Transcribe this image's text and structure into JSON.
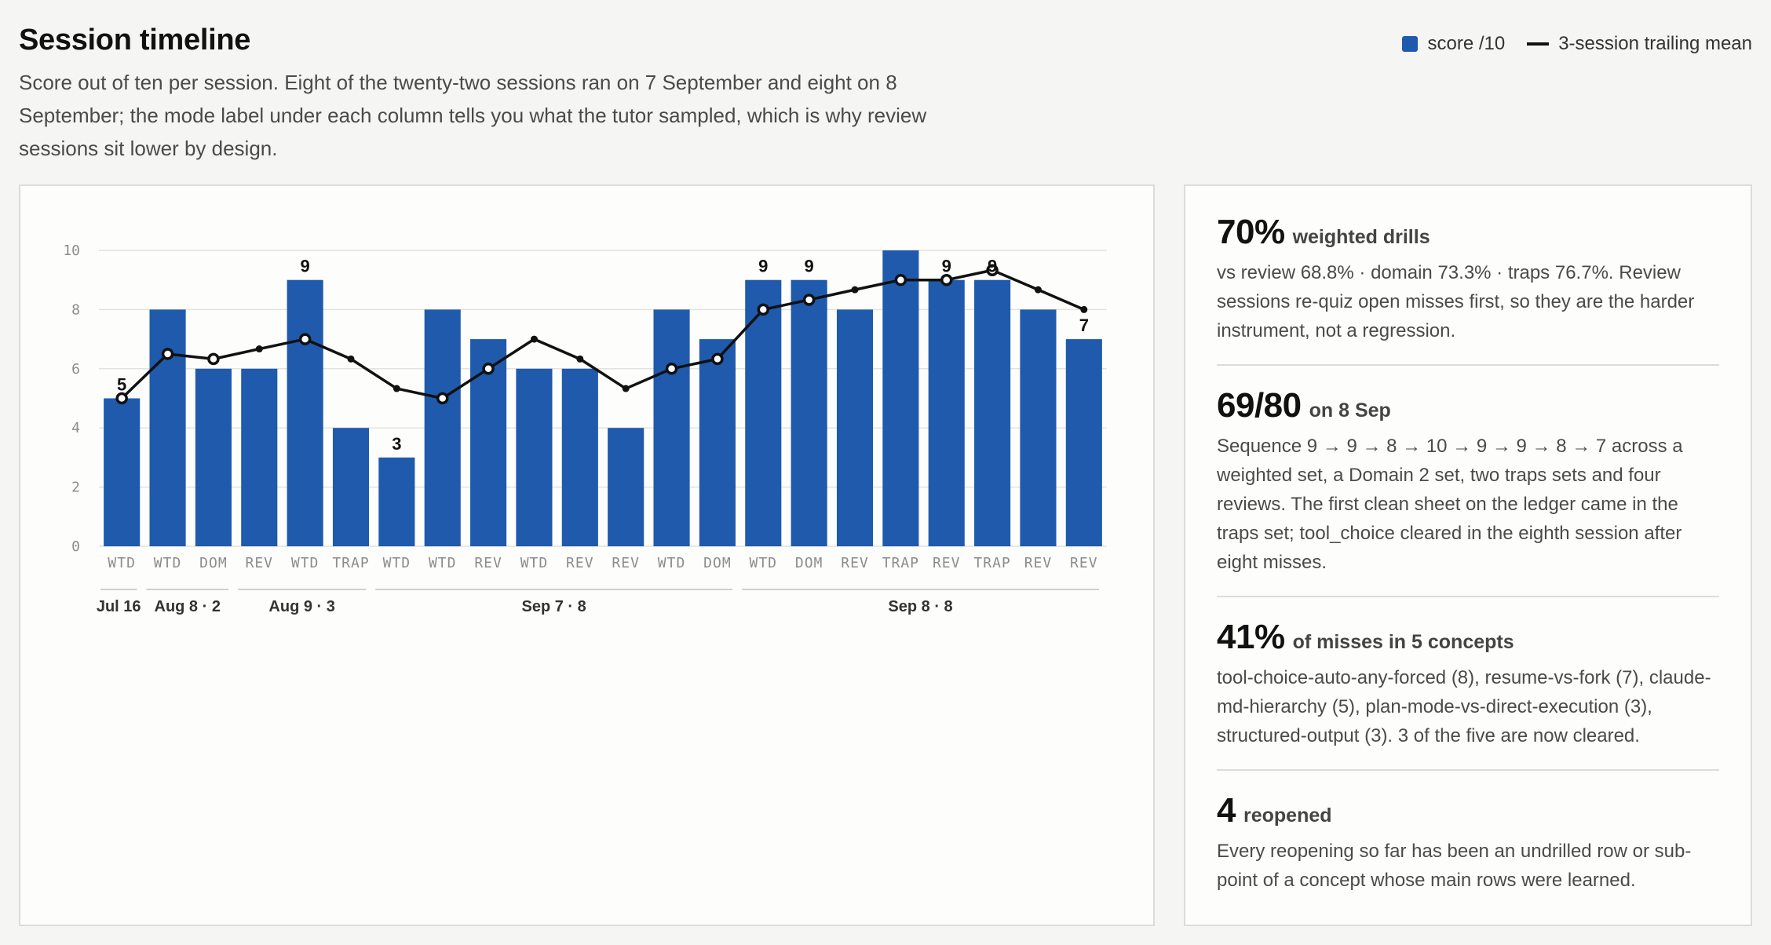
{
  "header": {
    "title": "Session timeline",
    "subtitle": "Score out of ten per session. Eight of the twenty-two sessions ran on 7 September and eight on 8 September; the mode label under each column tells you what the tutor sampled, which is why review sessions sit lower by design."
  },
  "legend": {
    "bar_label": "score /10",
    "line_label": "3-session trailing mean"
  },
  "colors": {
    "bar": "#1f5aad",
    "line": "#111111",
    "grid": "#e2e2de"
  },
  "chart_data": {
    "type": "bar",
    "title": "Session timeline",
    "ylim": [
      0,
      10
    ],
    "yticks": [
      0,
      2,
      4,
      6,
      8,
      10
    ],
    "grid": true,
    "legend_position": "top-right",
    "categories": [
      "WTD",
      "WTD",
      "DOM",
      "REV",
      "WTD",
      "TRAP",
      "WTD",
      "WTD",
      "REV",
      "WTD",
      "REV",
      "REV",
      "WTD",
      "DOM",
      "WTD",
      "DOM",
      "REV",
      "TRAP",
      "REV",
      "TRAP",
      "REV",
      "REV"
    ],
    "series": [
      {
        "name": "score /10",
        "type": "bar",
        "values": [
          5,
          8,
          6,
          6,
          9,
          4,
          3,
          8,
          7,
          6,
          6,
          4,
          8,
          7,
          9,
          9,
          8,
          10,
          9,
          9,
          8,
          7
        ]
      },
      {
        "name": "3-session trailing mean",
        "type": "line",
        "values": [
          5,
          6.5,
          6.33,
          6.67,
          7,
          6.33,
          5.33,
          5,
          6,
          7,
          6.33,
          5.33,
          6,
          6.33,
          8,
          8.33,
          8.67,
          9,
          9,
          9.33,
          8.67,
          8
        ]
      }
    ],
    "data_labels": [
      {
        "index": 0,
        "text": "5"
      },
      {
        "index": 4,
        "text": "9"
      },
      {
        "index": 6,
        "text": "3"
      },
      {
        "index": 14,
        "text": "9"
      },
      {
        "index": 15,
        "text": "9"
      },
      {
        "index": 18,
        "text": "9"
      },
      {
        "index": 19,
        "text": "9"
      },
      {
        "index": 21,
        "text": "7"
      }
    ],
    "date_groups": [
      {
        "label": "Jul 16",
        "start": 0,
        "end": 0
      },
      {
        "label": "Aug 8 · 2",
        "start": 1,
        "end": 2
      },
      {
        "label": "Aug 9 · 3",
        "start": 3,
        "end": 5
      },
      {
        "label": "Sep 7 · 8",
        "start": 6,
        "end": 13
      },
      {
        "label": "Sep 8 · 8",
        "start": 14,
        "end": 21
      }
    ]
  },
  "stats": [
    {
      "value": "70%",
      "caption": "weighted drills",
      "body": "vs review 68.8% · domain 73.3% · traps 76.7%. Review sessions re-quiz open misses first, so they are the harder instrument, not a regression."
    },
    {
      "value": "69/80",
      "caption": "on 8 Sep",
      "body": "Sequence 9 → 9 → 8 → 10 → 9 → 9 → 8 → 7 across a weighted set, a Domain 2 set, two traps sets and four reviews. The first clean sheet on the ledger came in the traps set; tool_choice cleared in the eighth session after eight misses."
    },
    {
      "value": "41%",
      "caption": "of misses in 5 concepts",
      "body": "tool-choice-auto-any-forced (8), resume-vs-fork (7), claude-md-hierarchy (5), plan-mode-vs-direct-execution (3), structured-output (3). 3 of the five are now cleared."
    },
    {
      "value": "4",
      "caption": "reopened",
      "body": "Every reopening so far has been an undrilled row or sub-point of a concept whose main rows were learned."
    }
  ]
}
